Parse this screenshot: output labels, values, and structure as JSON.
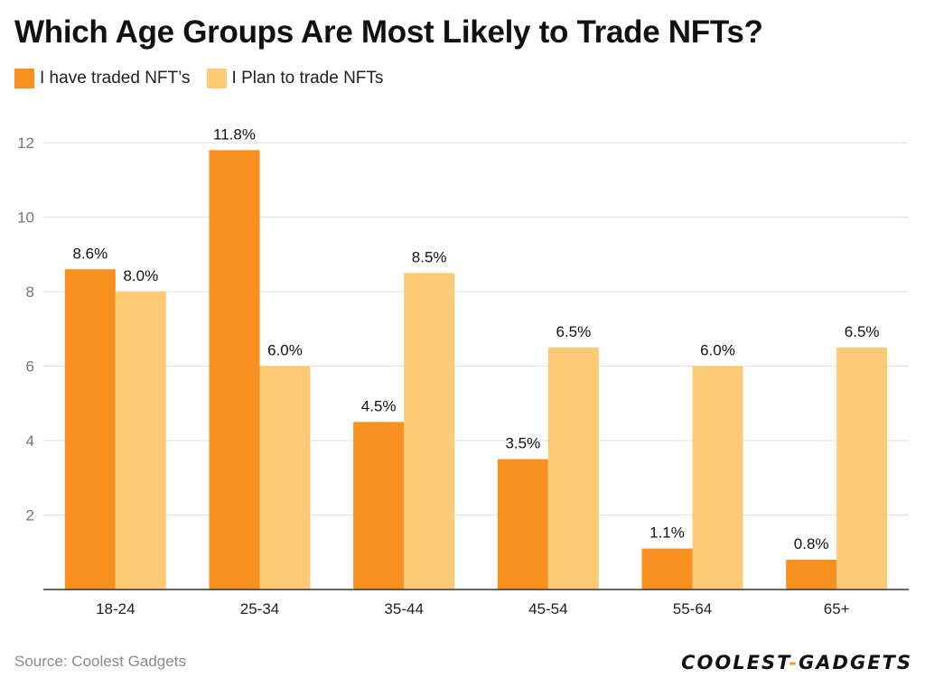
{
  "colors": {
    "traded": "#f7901e",
    "plan": "#fdca78",
    "grid": "#e2e2e2",
    "axis": "#333333"
  },
  "chart_data": {
    "type": "bar",
    "title": "Which Age Groups Are Most Likely to Trade NFTs?",
    "categories": [
      "18-24",
      "25-34",
      "35-44",
      "45-54",
      "55-64",
      "65+"
    ],
    "series": [
      {
        "name": "I have traded NFT’s",
        "values": [
          8.6,
          11.8,
          4.5,
          3.5,
          1.1,
          0.8
        ],
        "labels": [
          "8.6%",
          "11.8%",
          "4.5%",
          "3.5%",
          "1.1%",
          "0.8%"
        ]
      },
      {
        "name": "I Plan to trade NFTs",
        "values": [
          8.0,
          6.0,
          8.5,
          6.5,
          6.0,
          6.5
        ],
        "labels": [
          "8.0%",
          "6.0%",
          "8.5%",
          "6.5%",
          "6.0%",
          "6.5%"
        ]
      }
    ],
    "yticks": [
      2,
      4,
      6,
      8,
      10,
      12
    ],
    "ylim": [
      0,
      12
    ],
    "xlabel": "",
    "ylabel": "",
    "grid": true,
    "legend": "top-left"
  },
  "footer": {
    "source": "Source: Coolest Gadgets",
    "logo_left": "COOLEST",
    "logo_sep": "-",
    "logo_right": "GADGETS"
  }
}
